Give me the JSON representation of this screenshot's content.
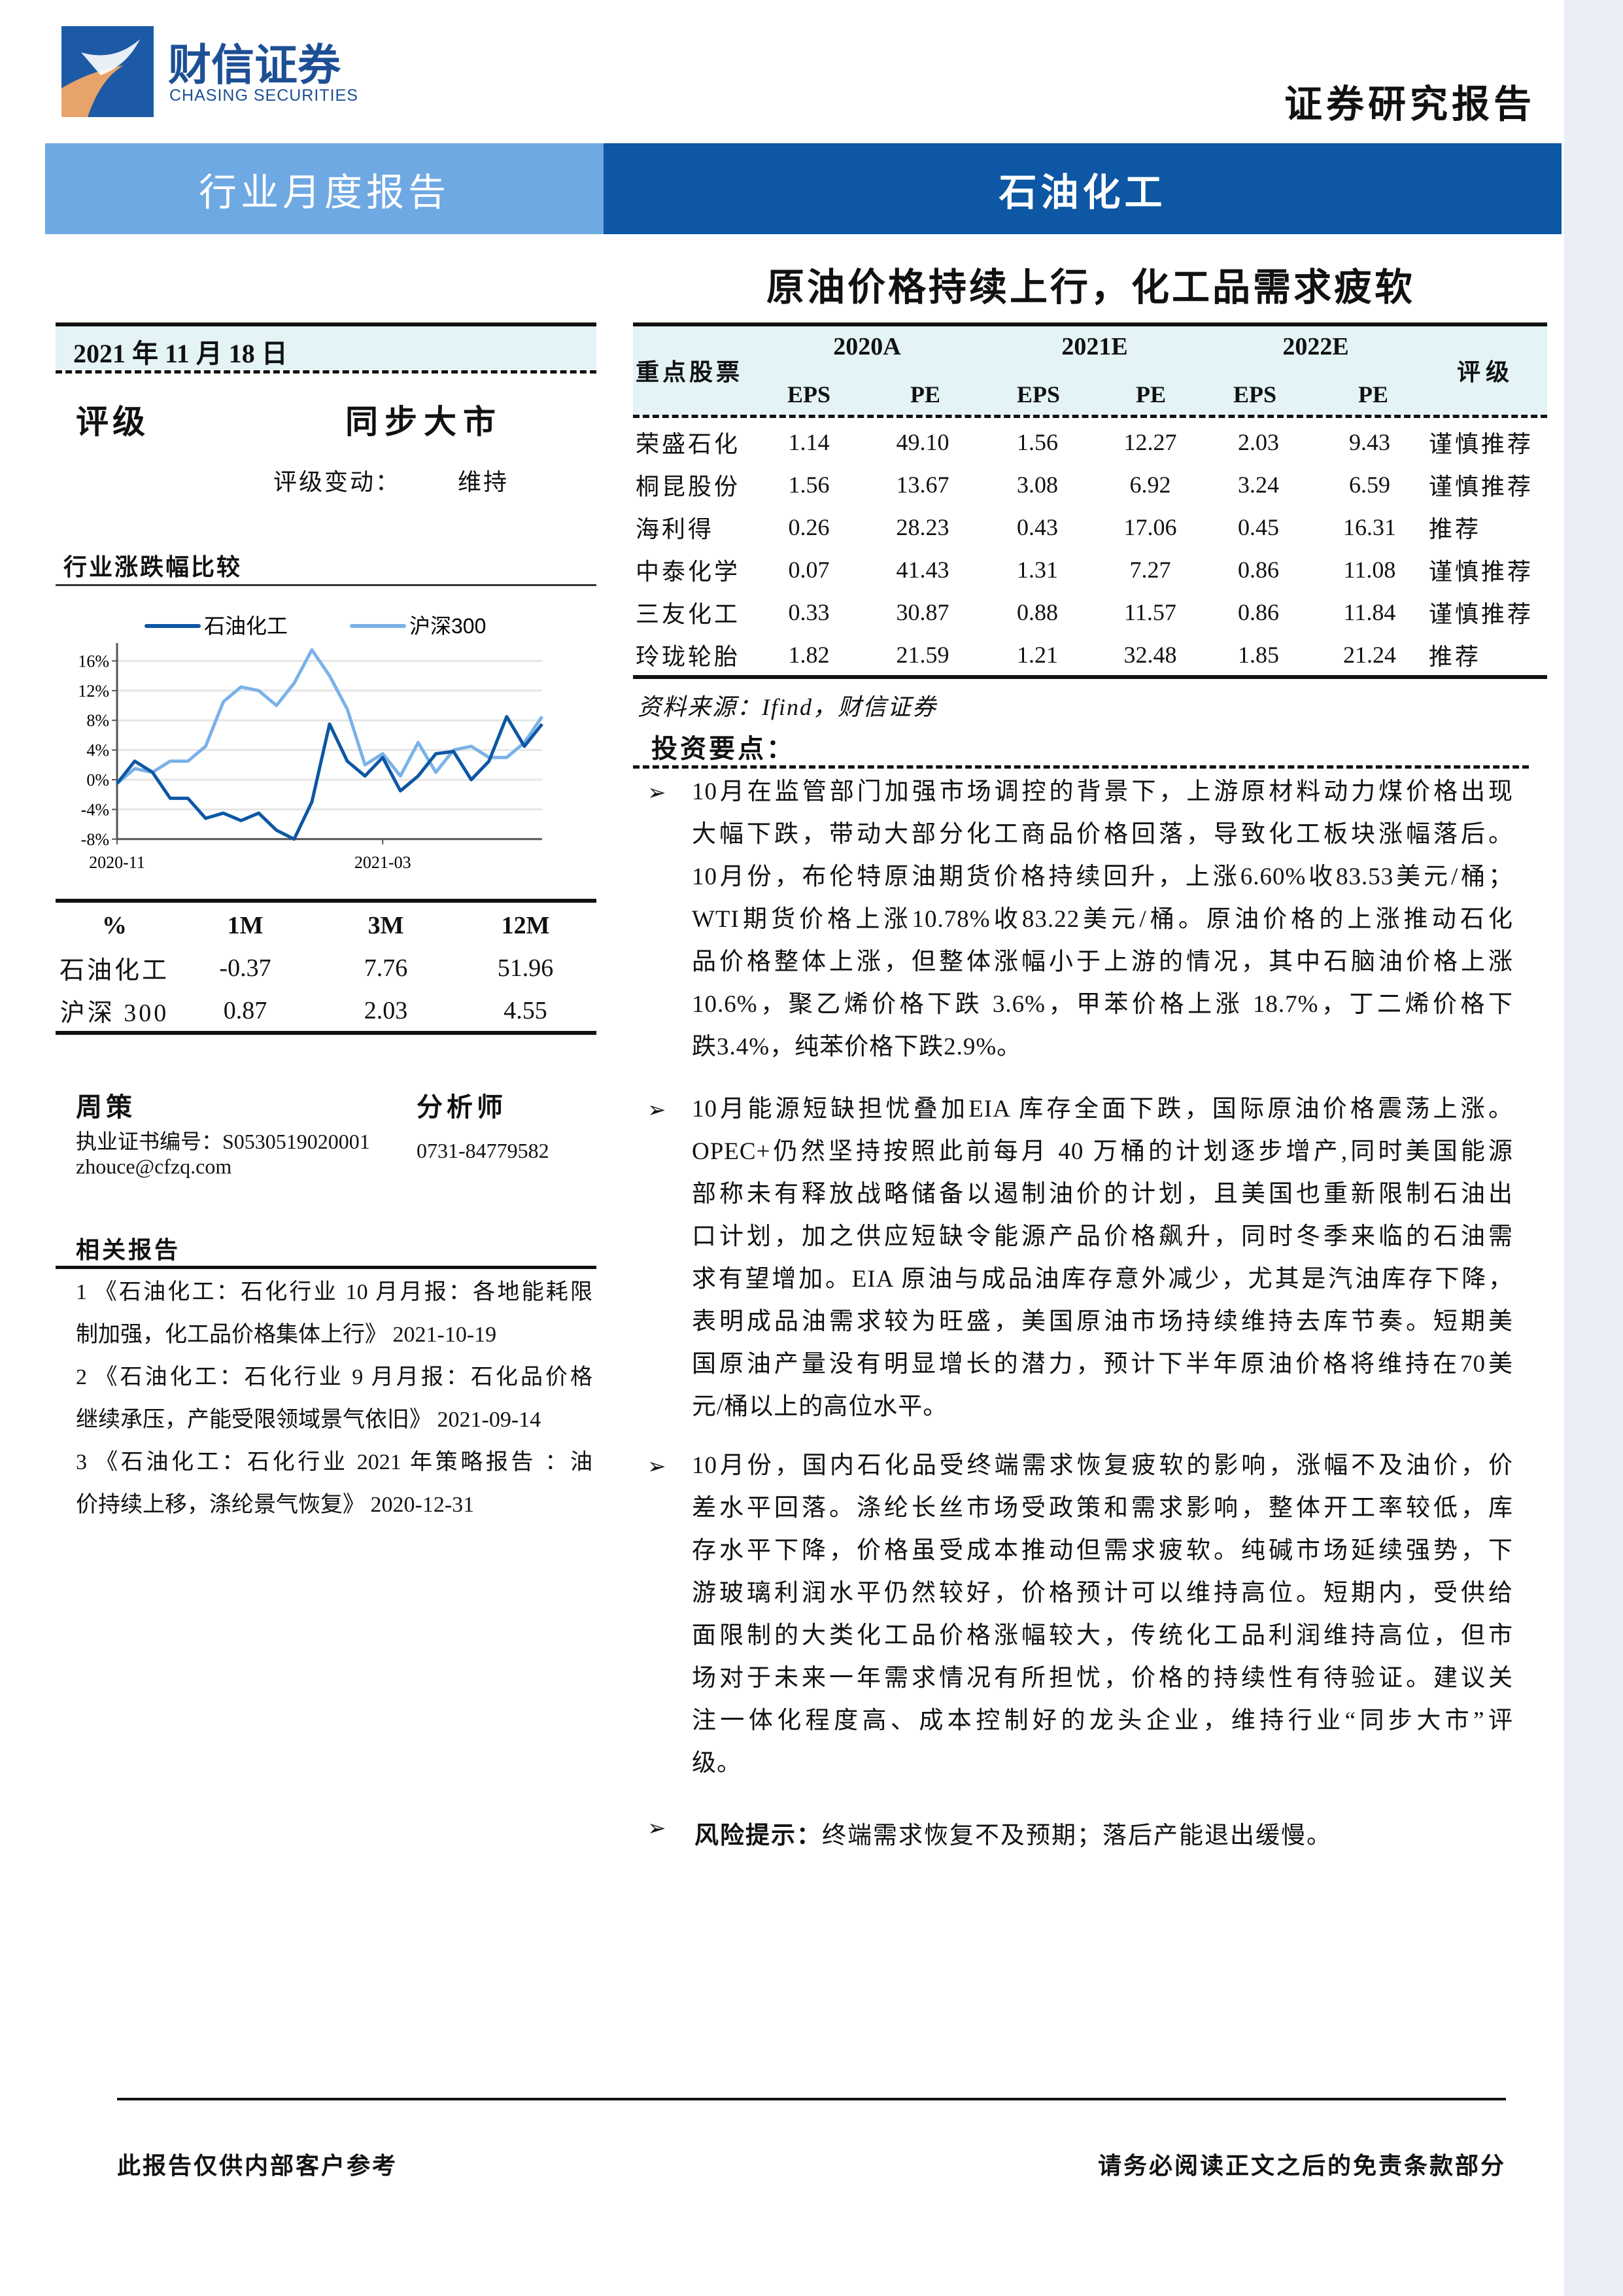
{
  "header": {
    "brand_cn": "财信证券",
    "brand_en": "CHASING SECURITIES",
    "doc_type": "证券研究报告",
    "band_left": "行业月度报告",
    "band_right": "石油化工",
    "title": "原油价格持续上行，化工品需求疲软",
    "colors": {
      "band_left": "#6fa9e3",
      "band_right": "#0d57a4",
      "side_strip": "#e9eef7"
    }
  },
  "left": {
    "date": "2021 年 11 月 18 日",
    "rating_label": "评级",
    "rating_value": "同步大市",
    "rating_change_label": "评级变动：",
    "rating_change_value": "维持",
    "chart_section_title": "行业涨跌幅比较",
    "perf_table": {
      "headers": [
        "%",
        "1M",
        "3M",
        "12M"
      ],
      "rows": [
        [
          "石油化工",
          "-0.37",
          "7.76",
          "51.96"
        ],
        [
          "沪深 300",
          "0.87",
          "2.03",
          "4.55"
        ]
      ]
    },
    "analyst": {
      "name": "周策",
      "role": "分析师",
      "cert": "执业证书编号：S0530519020001",
      "email": "zhouce@cfzq.com",
      "phone": "0731-84779582"
    },
    "related_title": "相关报告",
    "related": [
      {
        "lines": [
          "1 《石油化工：石化行业 10 月月报：各地能耗限",
          "制加强，化工品价格集体上行》 2021-10-19"
        ]
      },
      {
        "lines": [
          "2 《石油化工：石化行业 9 月月报：石化品价格",
          "继续承压，产能受限领域景气依旧》 2021-09-14"
        ]
      },
      {
        "lines": [
          "3 《石油化工：石化行业 2021 年策略报告 ：油",
          "价持续上移，涤纶景气恢复》 2020-12-31"
        ]
      }
    ]
  },
  "chart_data": {
    "type": "line",
    "title": "",
    "legend_position": "top",
    "xlabel": "",
    "ylabel": "",
    "x_ticks": [
      "2020-11",
      "2021-03"
    ],
    "y_ticks": [
      "16%",
      "12%",
      "8%",
      "4%",
      "0%",
      "-4%",
      "-8%"
    ],
    "ylim": [
      -8,
      18
    ],
    "grid": "horizontal",
    "x": [
      "2020-11-16",
      "2020-11-23",
      "2020-11-30",
      "2020-12-07",
      "2020-12-14",
      "2020-12-21",
      "2020-12-28",
      "2021-01-04",
      "2021-01-11",
      "2021-01-18",
      "2021-01-25",
      "2021-02-01",
      "2021-02-08",
      "2021-02-15",
      "2021-02-22",
      "2021-03-01",
      "2021-03-08",
      "2021-03-15",
      "2021-03-22",
      "2021-03-29",
      "2021-04-05",
      "2021-04-12",
      "2021-04-19",
      "2021-04-26",
      "2021-05-03"
    ],
    "series": [
      {
        "name": "石油化工",
        "color": "#0d57a4",
        "values": [
          -0.5,
          2.5,
          1.0,
          -2.5,
          -2.5,
          -5.2,
          -4.5,
          -5.5,
          -4.5,
          -6.8,
          -8.0,
          -3.0,
          7.5,
          2.5,
          0.5,
          3.0,
          -1.5,
          0.5,
          3.5,
          3.8,
          0.0,
          2.5,
          8.5,
          4.5,
          7.5
        ]
      },
      {
        "name": "沪深300",
        "color": "#7ab2e8",
        "values": [
          -0.5,
          1.5,
          1.0,
          2.5,
          2.5,
          4.5,
          10.5,
          12.5,
          12.0,
          10.0,
          13.0,
          17.5,
          14.0,
          9.5,
          2.0,
          3.5,
          0.5,
          5.0,
          1.0,
          4.0,
          4.5,
          3.0,
          3.0,
          5.0,
          8.5
        ]
      }
    ]
  },
  "stocks": {
    "name_header": "重点股票",
    "years": [
      "2020A",
      "2021E",
      "2022E"
    ],
    "sub": [
      "EPS",
      "PE"
    ],
    "rating_header": "评级",
    "rows": [
      [
        "荣盛石化",
        "1.14",
        "49.10",
        "1.56",
        "12.27",
        "2.03",
        "9.43",
        "谨慎推荐"
      ],
      [
        "桐昆股份",
        "1.56",
        "13.67",
        "3.08",
        "6.92",
        "3.24",
        "6.59",
        "谨慎推荐"
      ],
      [
        "海利得",
        "0.26",
        "28.23",
        "0.43",
        "17.06",
        "0.45",
        "16.31",
        "推荐"
      ],
      [
        "中泰化学",
        "0.07",
        "41.43",
        "1.31",
        "7.27",
        "0.86",
        "11.08",
        "谨慎推荐"
      ],
      [
        "三友化工",
        "0.33",
        "30.87",
        "0.88",
        "11.57",
        "0.86",
        "11.84",
        "谨慎推荐"
      ],
      [
        "玲珑轮胎",
        "1.82",
        "21.59",
        "1.21",
        "32.48",
        "1.85",
        "21.24",
        "推荐"
      ]
    ],
    "source": "资料来源：Ifind，财信证券"
  },
  "points": {
    "title": "投资要点：",
    "bullet_icon": "arrow-right-icon",
    "paragraphs": [
      {
        "lines": [
          "10月在监管部门加强市场调控的背景下，上游原材料动力煤价格出现",
          "大幅下跌，带动大部分化工商品价格回落，导致化工板块涨幅落后。",
          "10月份，布伦特原油期货价格持续回升，上涨6.60%收83.53美元/桶；",
          "WTI期货价格上涨10.78%收83.22美元/桶。原油价格的上涨推动石化",
          "品价格整体上涨，但整体涨幅小于上游的情况，其中石脑油价格上涨",
          "10.6%，聚乙烯价格下跌 3.6%，甲苯价格上涨 18.7%，丁二烯价格下",
          "跌3.4%，纯苯价格下跌2.9%。"
        ]
      },
      {
        "lines": [
          "10月能源短缺担忧叠加EIA 库存全面下跌，国际原油价格震荡上涨。",
          "OPEC+仍然坚持按照此前每月 40 万桶的计划逐步增产,同时美国能源",
          "部称未有释放战略储备以遏制油价的计划，且美国也重新限制石油出",
          "口计划，加之供应短缺令能源产品价格飙升，同时冬季来临的石油需",
          "求有望增加。EIA 原油与成品油库存意外减少，尤其是汽油库存下降，",
          "表明成品油需求较为旺盛，美国原油市场持续维持去库节奏。短期美",
          "国原油产量没有明显增长的潜力，预计下半年原油价格将维持在70美",
          "元/桶以上的高位水平。"
        ]
      },
      {
        "lines": [
          "10月份，国内石化品受终端需求恢复疲软的影响，涨幅不及油价，价",
          "差水平回落。涤纶长丝市场受政策和需求影响，整体开工率较低，库",
          "存水平下降，价格虽受成本推动但需求疲软。纯碱市场延续强势，下",
          "游玻璃利润水平仍然较好，价格预计可以维持高位。短期内，受供给",
          "面限制的大类化工品价格涨幅较大，传统化工品利润维持高位，但市",
          "场对于未来一年需求情况有所担忧，价格的持续性有待验证。建议关",
          "注一体化程度高、成本控制好的龙头企业，维持行业“同步大市”评",
          "级。"
        ]
      }
    ],
    "risk_label": "风险提示：",
    "risk_text": "终端需求恢复不及预期；落后产能退出缓慢。"
  },
  "footer": {
    "left": "此报告仅供内部客户参考",
    "right": "请务必阅读正文之后的免责条款部分"
  }
}
